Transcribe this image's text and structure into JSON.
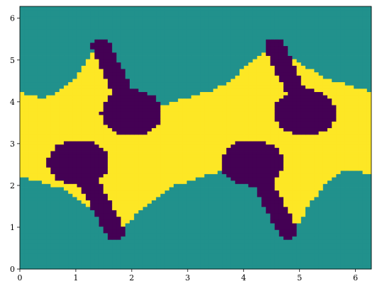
{
  "chart_data": {
    "type": "heatmap",
    "title": "",
    "xlabel": "",
    "ylabel": "",
    "xlim": [
      0,
      6.2832
    ],
    "ylim": [
      0,
      6.2832
    ],
    "x_ticks": [
      "0",
      "1",
      "2",
      "3",
      "4",
      "5",
      "6"
    ],
    "y_ticks": [
      "0",
      "1",
      "2",
      "3",
      "4",
      "5",
      "6"
    ],
    "grid": false,
    "legend": "none",
    "colormap": "viridis",
    "categories": [
      {
        "value": 0,
        "color": "#440154"
      },
      {
        "value": 1,
        "color": "#21918c"
      },
      {
        "value": 2,
        "color": "#fde725"
      }
    ],
    "resolution": [
      80,
      80
    ],
    "bands": {
      "lower_boundary": "y = 2.2 - 0.42*sin(x - 0.1)",
      "upper_boundary": "y = 4.2 + 0.42*sin(x - 0.1)",
      "upper_peaks_x": [
        1.4,
        4.55
      ],
      "upper_peak_y": 5.4,
      "lower_troughs_x": [
        1.75,
        4.9
      ],
      "lower_trough_y": 0.9
    },
    "holes": [
      {
        "center": [
          2.0,
          3.75
        ],
        "radius": 0.55,
        "tail_to": [
          1.45,
          5.35
        ],
        "tail_width": 0.18
      },
      {
        "center": [
          5.1,
          3.75
        ],
        "radius": 0.55,
        "tail_to": [
          4.55,
          5.35
        ],
        "tail_width": 0.18
      },
      {
        "center": [
          1.05,
          2.55
        ],
        "radius": 0.55,
        "tail_to": [
          1.7,
          0.9
        ],
        "tail_width": 0.18
      },
      {
        "center": [
          4.15,
          2.55
        ],
        "radius": 0.55,
        "tail_to": [
          4.8,
          0.9
        ],
        "tail_width": 0.18
      }
    ]
  }
}
